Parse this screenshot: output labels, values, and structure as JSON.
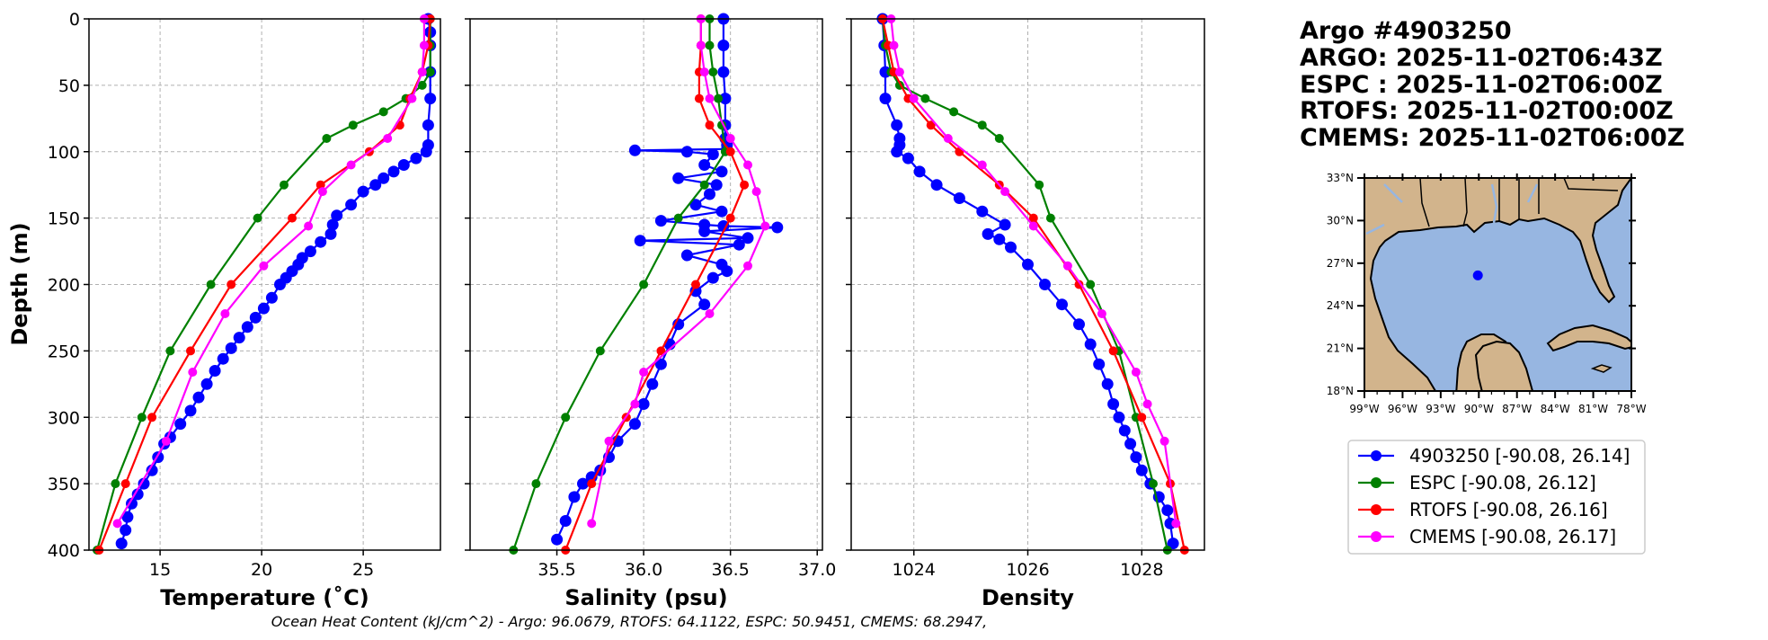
{
  "header": {
    "lines": [
      "Argo #4903250",
      "ARGO: 2025-11-02T06:43Z",
      "ESPC : 2025-11-02T06:00Z",
      "RTOFS: 2025-11-02T00:00Z",
      "CMEMS: 2025-11-02T06:00Z"
    ]
  },
  "footnote": "Ocean Heat Content (kJ/cm^2) - Argo: 96.0679,  RTOFS: 64.1122,  ESPC: 50.9451,  CMEMS: 68.2947,",
  "colors": {
    "argo": "#0000ff",
    "espc": "#008000",
    "rtofs": "#ff0000",
    "cmems": "#ff00ff",
    "land": "#d2b48c",
    "ocean": "#97b6e1",
    "grid": "#b0b0b0"
  },
  "legend": {
    "entries": [
      "4903250 [-90.08, 26.14]",
      "ESPC [-90.08, 26.12]",
      "RTOFS [-90.08, 26.16]",
      "CMEMS [-90.08, 26.17]"
    ]
  },
  "map": {
    "lon_ticks": [
      "99°W",
      "96°W",
      "93°W",
      "90°W",
      "87°W",
      "84°W",
      "81°W",
      "78°W"
    ],
    "lat_ticks": [
      "33°N",
      "30°N",
      "27°N",
      "24°N",
      "21°N",
      "18°N"
    ],
    "lon_range": [
      -99,
      -78
    ],
    "lat_range": [
      18,
      33
    ],
    "float_position": [
      -90.08,
      26.14
    ]
  },
  "chart_data": [
    {
      "type": "line",
      "xlabel": "Temperature (˚C)",
      "ylabel": "Depth (m)",
      "xlim": [
        11.5,
        28.8
      ],
      "ylim": [
        400,
        0
      ],
      "xticks": [
        "15",
        "20",
        "25"
      ],
      "yticks": [
        "0",
        "50",
        "100",
        "150",
        "200",
        "250",
        "300",
        "350",
        "400"
      ],
      "grid": true,
      "series": [
        {
          "name": "4903250",
          "key": "argo",
          "x": [
            28.2,
            28.3,
            28.3,
            28.3,
            28.3,
            28.2,
            28.2,
            28.1,
            27.6,
            27.0,
            26.5,
            26.0,
            25.6,
            25.0,
            24.4,
            23.7,
            23.5,
            23.4,
            22.9,
            22.4,
            22.0,
            21.8,
            21.5,
            21.2,
            20.9,
            20.5,
            20.1,
            19.7,
            19.3,
            18.9,
            18.5,
            18.1,
            17.7,
            17.3,
            16.9,
            16.5,
            16.0,
            15.5,
            15.2,
            14.9,
            14.6,
            14.2,
            13.9,
            13.6,
            13.4,
            13.3,
            13.1
          ],
          "y": [
            0,
            10,
            20,
            40,
            60,
            80,
            95,
            100,
            105,
            110,
            115,
            120,
            125,
            130,
            140,
            148,
            155,
            162,
            168,
            175,
            180,
            185,
            190,
            195,
            200,
            210,
            218,
            225,
            232,
            240,
            248,
            256,
            265,
            275,
            285,
            295,
            305,
            315,
            320,
            330,
            340,
            350,
            358,
            365,
            375,
            385,
            395
          ]
        },
        {
          "name": "ESPC",
          "key": "espc",
          "x": [
            28.3,
            28.3,
            28.3,
            27.9,
            27.1,
            26.0,
            24.5,
            23.2,
            21.1,
            19.8,
            17.5,
            15.5,
            14.1,
            12.8,
            11.9
          ],
          "y": [
            0,
            20,
            40,
            50,
            60,
            70,
            80,
            90,
            125,
            150,
            200,
            250,
            300,
            350,
            400
          ]
        },
        {
          "name": "RTOFS",
          "key": "rtofs",
          "x": [
            28.3,
            28.2,
            27.9,
            27.3,
            26.8,
            25.3,
            22.9,
            21.5,
            18.5,
            16.5,
            14.6,
            13.3,
            12.0
          ],
          "y": [
            0,
            20,
            40,
            60,
            80,
            100,
            125,
            150,
            200,
            250,
            300,
            350,
            400
          ]
        },
        {
          "name": "CMEMS",
          "key": "cmems",
          "x": [
            28.0,
            28.0,
            27.9,
            27.4,
            26.2,
            24.4,
            23.0,
            22.3,
            20.1,
            18.2,
            16.6,
            15.3,
            12.9
          ],
          "y": [
            0,
            20,
            40,
            60,
            90,
            110,
            130,
            156,
            186,
            222,
            266,
            318,
            380
          ]
        }
      ]
    },
    {
      "type": "line",
      "xlabel": "Salinity (psu)",
      "ylabel": "",
      "xlim": [
        35.0,
        37.03
      ],
      "ylim": [
        400,
        0
      ],
      "xticks": [
        "35.5",
        "36.0",
        "36.5",
        "37.0"
      ],
      "grid": true,
      "series": [
        {
          "name": "4903250",
          "key": "argo",
          "x": [
            36.46,
            36.46,
            36.46,
            36.47,
            36.47,
            36.47,
            36.48,
            36.48,
            35.95,
            36.25,
            36.4,
            36.35,
            36.45,
            36.2,
            36.42,
            36.38,
            36.3,
            36.45,
            36.1,
            36.35,
            36.46,
            36.77,
            36.35,
            36.6,
            35.98,
            36.55,
            36.25,
            36.45,
            36.48,
            36.4,
            36.3,
            36.35,
            36.2,
            36.15,
            36.1,
            36.05,
            36.0,
            35.95,
            35.85,
            35.8,
            35.75,
            35.7,
            35.65,
            35.6,
            35.55,
            35.5
          ],
          "y": [
            0,
            20,
            40,
            60,
            80,
            90,
            95,
            98,
            99,
            100,
            102,
            110,
            115,
            120,
            125,
            132,
            140,
            145,
            152,
            155,
            156,
            157,
            160,
            165,
            167,
            170,
            178,
            185,
            190,
            195,
            205,
            215,
            230,
            245,
            260,
            275,
            290,
            305,
            318,
            330,
            340,
            345,
            350,
            360,
            378,
            392
          ]
        },
        {
          "name": "ESPC",
          "key": "espc",
          "x": [
            36.38,
            36.38,
            36.4,
            36.43,
            36.45,
            36.47,
            36.35,
            36.2,
            36.0,
            35.75,
            35.55,
            35.38,
            35.25
          ],
          "y": [
            0,
            20,
            40,
            60,
            80,
            100,
            125,
            150,
            200,
            250,
            300,
            350,
            400
          ]
        },
        {
          "name": "RTOFS",
          "key": "rtofs",
          "x": [
            36.33,
            36.33,
            36.32,
            36.32,
            36.38,
            36.5,
            36.58,
            36.5,
            36.3,
            36.1,
            35.9,
            35.7,
            35.55
          ],
          "y": [
            0,
            20,
            40,
            60,
            80,
            100,
            125,
            150,
            200,
            250,
            300,
            350,
            400
          ]
        },
        {
          "name": "CMEMS",
          "key": "cmems",
          "x": [
            36.33,
            36.33,
            36.35,
            36.38,
            36.5,
            36.6,
            36.65,
            36.7,
            36.6,
            36.38,
            36.0,
            35.95,
            35.8,
            35.7
          ],
          "y": [
            0,
            20,
            40,
            60,
            90,
            110,
            130,
            156,
            186,
            222,
            266,
            290,
            318,
            380
          ]
        }
      ]
    },
    {
      "type": "line",
      "xlabel": "Density",
      "ylabel": "",
      "xlim": [
        1022.9,
        1029.1
      ],
      "ylim": [
        400,
        0
      ],
      "xticks": [
        "1024",
        "1026",
        "1028"
      ],
      "grid": true,
      "series": [
        {
          "name": "4903250",
          "key": "argo",
          "x": [
            1023.45,
            1023.48,
            1023.5,
            1023.5,
            1023.7,
            1023.75,
            1023.75,
            1023.7,
            1023.9,
            1024.1,
            1024.4,
            1024.8,
            1025.2,
            1025.6,
            1025.3,
            1025.5,
            1025.7,
            1026.0,
            1026.3,
            1026.6,
            1026.9,
            1027.1,
            1027.25,
            1027.4,
            1027.5,
            1027.6,
            1027.7,
            1027.8,
            1027.9,
            1028.0,
            1028.15,
            1028.3,
            1028.45,
            1028.5,
            1028.55
          ],
          "y": [
            0,
            20,
            40,
            60,
            80,
            90,
            95,
            100,
            105,
            115,
            125,
            135,
            145,
            155,
            162,
            166,
            172,
            185,
            200,
            215,
            230,
            245,
            260,
            275,
            290,
            300,
            310,
            320,
            330,
            340,
            350,
            360,
            370,
            380,
            395
          ]
        },
        {
          "name": "ESPC",
          "key": "espc",
          "x": [
            1023.45,
            1023.5,
            1023.6,
            1023.75,
            1024.2,
            1024.7,
            1025.2,
            1025.5,
            1026.2,
            1026.4,
            1027.1,
            1027.6,
            1027.9,
            1028.2,
            1028.45
          ],
          "y": [
            0,
            20,
            40,
            50,
            60,
            70,
            80,
            90,
            125,
            150,
            200,
            250,
            300,
            350,
            400
          ]
        },
        {
          "name": "RTOFS",
          "key": "rtofs",
          "x": [
            1023.45,
            1023.55,
            1023.65,
            1023.9,
            1024.3,
            1024.8,
            1025.5,
            1026.1,
            1026.9,
            1027.5,
            1028.0,
            1028.5,
            1028.75
          ],
          "y": [
            0,
            20,
            40,
            60,
            80,
            100,
            125,
            150,
            200,
            250,
            300,
            350,
            400
          ]
        },
        {
          "name": "CMEMS",
          "key": "cmems",
          "x": [
            1023.6,
            1023.65,
            1023.75,
            1024.0,
            1024.6,
            1025.2,
            1025.6,
            1026.1,
            1026.7,
            1027.3,
            1027.9,
            1028.1,
            1028.4,
            1028.6
          ],
          "y": [
            0,
            20,
            40,
            60,
            90,
            110,
            130,
            156,
            186,
            222,
            266,
            290,
            318,
            380
          ]
        }
      ]
    }
  ]
}
